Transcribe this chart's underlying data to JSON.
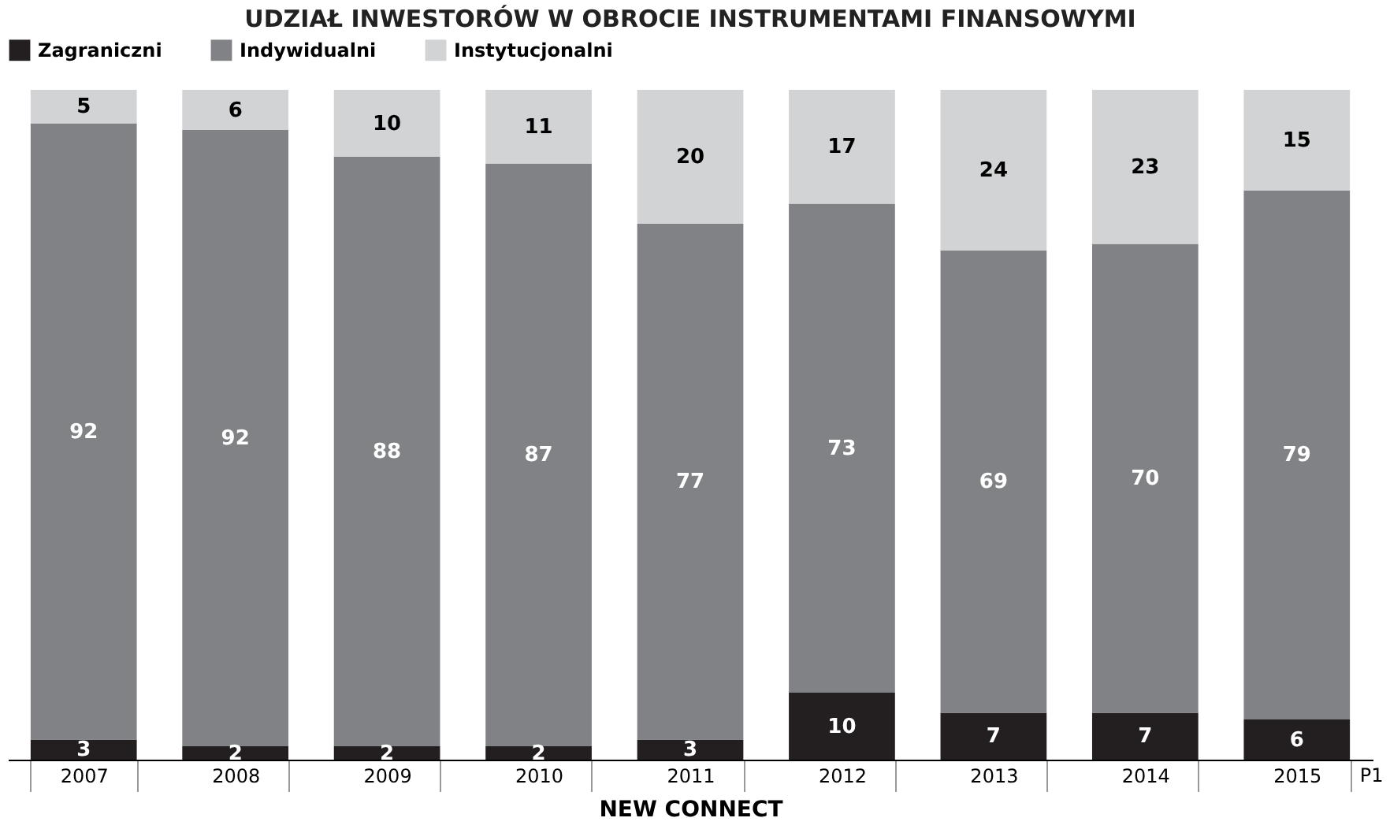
{
  "chart_data": {
    "type": "bar",
    "stacked": true,
    "title": "UDZIAŁ INWESTORÓW W OBROCIE INSTRUMENTAMI FINANSOWYMI",
    "xlabel": "NEW CONNECT",
    "categories": [
      "2007",
      "2008",
      "2009",
      "2010",
      "2011",
      "2012",
      "2013",
      "2014",
      "2015"
    ],
    "series": [
      {
        "name": "Zagraniczni",
        "color": "#231f20",
        "values": [
          3,
          2,
          2,
          2,
          3,
          10,
          7,
          7,
          6
        ]
      },
      {
        "name": "Indywidualni",
        "color": "#808285",
        "values": [
          92,
          92,
          88,
          87,
          77,
          73,
          69,
          70,
          79
        ]
      },
      {
        "name": "Instytucjonalni",
        "color": "#d1d3d4",
        "values": [
          5,
          6,
          10,
          11,
          20,
          17,
          24,
          23,
          15
        ]
      }
    ],
    "data_labels": true,
    "legend": "top",
    "annotations": [
      "P1"
    ]
  }
}
